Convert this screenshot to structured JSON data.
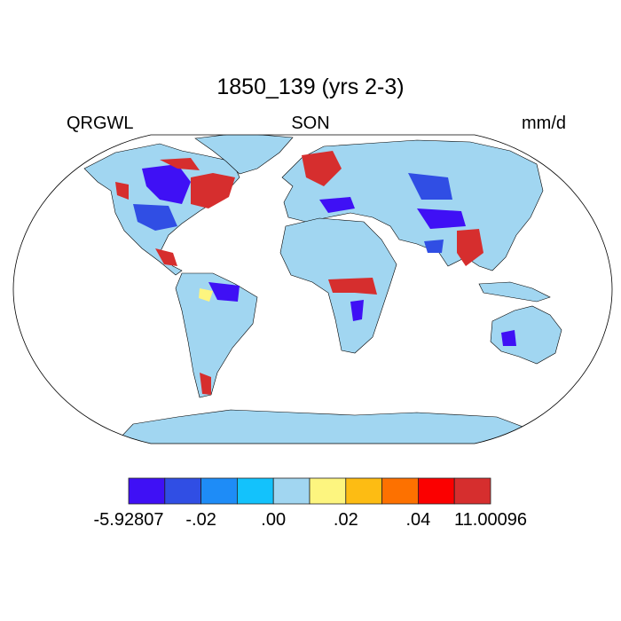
{
  "title": "1850_139 (yrs 2-3)",
  "left_label": "QRGWL",
  "center_label": "SON",
  "right_label": "mm/d",
  "colorbar": {
    "colors": [
      "#3f10f5",
      "#304ee4",
      "#1e8cf7",
      "#13c2fc",
      "#a1d6f1",
      "#fdf57f",
      "#fdbc13",
      "#fd7100",
      "#fb0000",
      "#d62e2e"
    ],
    "labels": [
      "-5.92807",
      "-.02",
      ".00",
      ".02",
      ".04",
      "11.00096"
    ],
    "label_boundaries": [
      0,
      2,
      4,
      6,
      8,
      10
    ]
  },
  "map": {
    "land_color": "#a1d6f1",
    "ocean_color": "#ffffff",
    "outline_color": "#000000"
  }
}
